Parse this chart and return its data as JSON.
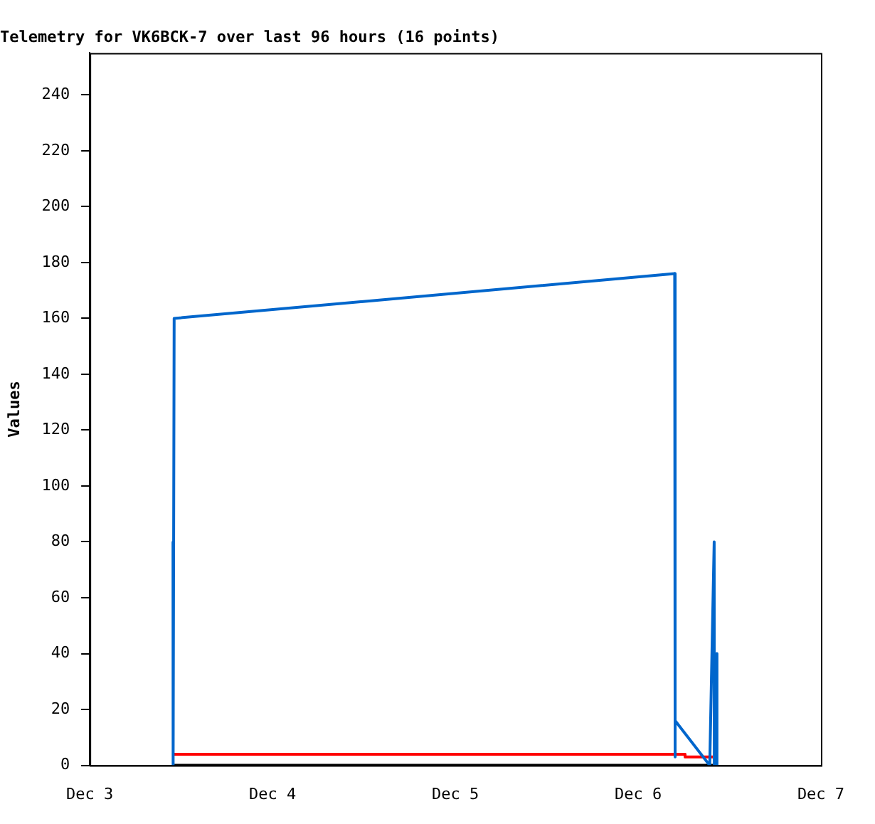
{
  "chart_data": {
    "type": "line",
    "title": "Telemetry for VK6BCK-7 over last 96 hours (16 points)",
    "ylabel": "Values",
    "series": [
      {
        "color": "#0066cc",
        "x": [
          "--12-03T10:56",
          "--12-03T10:57",
          "--12-03T11:05",
          "--12-06T04:48",
          "--12-06T04:49",
          "--12-06T04:54",
          "--12-06T09:24",
          "--12-06T09:59",
          "--12-06T10:00",
          "--12-06T10:20",
          "--12-06T10:21"
        ],
        "values": [
          80,
          0,
          160,
          176,
          3,
          16,
          0,
          80,
          0,
          40,
          0
        ]
      },
      {
        "color": "#ff0000",
        "x": [
          "--12-03T10:56",
          "--12-06T06:09",
          "--12-06T06:10",
          "--12-06T09:48"
        ],
        "values": [
          4,
          4,
          3,
          3
        ]
      },
      {
        "color": "#000000",
        "x": [
          "--12-03T10:56",
          "--12-06T10:21"
        ],
        "values": [
          0,
          0
        ]
      }
    ],
    "xlim": [
      "--12-03",
      "--12-07"
    ],
    "xticks": [
      {
        "value": "--12-03",
        "label": "Dec 3"
      },
      {
        "value": "--12-04",
        "label": "Dec 4"
      },
      {
        "value": "--12-05",
        "label": "Dec 5"
      },
      {
        "value": "--12-06",
        "label": "Dec 6"
      },
      {
        "value": "--12-07",
        "label": "Dec 7"
      }
    ],
    "ylim": [
      0,
      255
    ],
    "yticks": [
      0,
      20,
      40,
      60,
      80,
      100,
      120,
      140,
      160,
      180,
      200,
      220,
      240
    ],
    "grid": false,
    "legend": false,
    "marker": "none",
    "line_style": "solid"
  }
}
